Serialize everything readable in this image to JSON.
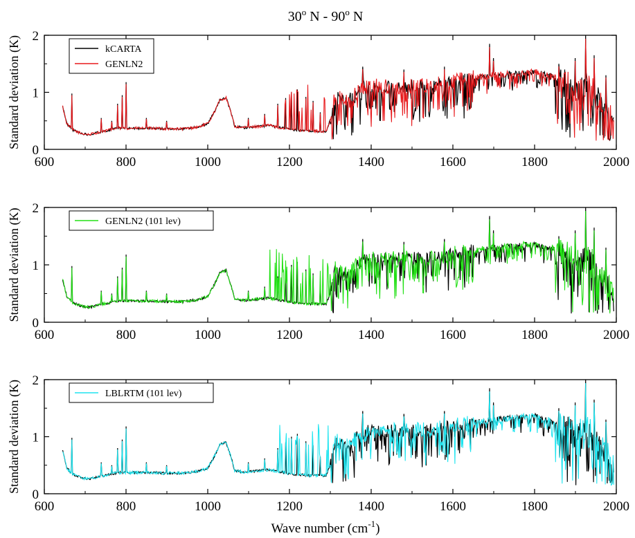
{
  "title": "30",
  "title_parts": {
    "a": "30",
    "a_sup": "o",
    "b": " N - 90",
    "b_sup": "o",
    "c": " N"
  },
  "xlabel": {
    "main": "Wave number (cm",
    "sup": "-1",
    "close": ")"
  },
  "chart_data": [
    {
      "type": "line",
      "ylabel": "Standard deviation (K)",
      "xlim": [
        600,
        2000
      ],
      "ylim": [
        0,
        2
      ],
      "xticks": [
        600,
        800,
        1000,
        1200,
        1400,
        1600,
        1800,
        2000
      ],
      "yticks": [
        0,
        1,
        2
      ],
      "legend_position": "top-left",
      "series": [
        {
          "name": "kCARTA",
          "color": "#000000"
        },
        {
          "name": "GENLN2",
          "color": "#e8191c"
        }
      ]
    },
    {
      "type": "line",
      "ylabel": "Standard deviation (K)",
      "xlim": [
        600,
        2000
      ],
      "ylim": [
        0,
        2
      ],
      "xticks": [
        600,
        800,
        1000,
        1200,
        1400,
        1600,
        1800,
        2000
      ],
      "yticks": [
        0,
        1,
        2
      ],
      "legend_position": "top-left",
      "series": [
        {
          "name": "",
          "color": "#000000"
        },
        {
          "name": "GENLN2 (101 lev)",
          "color": "#22e015"
        }
      ]
    },
    {
      "type": "line",
      "ylabel": "Standard deviation (K)",
      "xlim": [
        600,
        2000
      ],
      "ylim": [
        0,
        2
      ],
      "xticks": [
        600,
        800,
        1000,
        1200,
        1400,
        1600,
        1800,
        2000
      ],
      "yticks": [
        0,
        1,
        2
      ],
      "legend_position": "top-left",
      "series": [
        {
          "name": "",
          "color": "#000000"
        },
        {
          "name": "LBLRTM (101 lev)",
          "color": "#1ee4ef"
        }
      ]
    }
  ],
  "baseline_profile": [
    [
      645,
      0.75
    ],
    [
      655,
      0.45
    ],
    [
      670,
      0.34
    ],
    [
      690,
      0.28
    ],
    [
      710,
      0.26
    ],
    [
      740,
      0.31
    ],
    [
      780,
      0.37
    ],
    [
      820,
      0.37
    ],
    [
      860,
      0.37
    ],
    [
      900,
      0.36
    ],
    [
      940,
      0.36
    ],
    [
      975,
      0.39
    ],
    [
      1000,
      0.45
    ],
    [
      1018,
      0.68
    ],
    [
      1030,
      0.87
    ],
    [
      1045,
      0.9
    ],
    [
      1058,
      0.62
    ],
    [
      1066,
      0.4
    ],
    [
      1090,
      0.38
    ],
    [
      1120,
      0.4
    ],
    [
      1150,
      0.42
    ],
    [
      1200,
      0.35
    ],
    [
      1250,
      0.32
    ],
    [
      1290,
      0.32
    ],
    [
      1302,
      0.55
    ],
    [
      1312,
      0.95
    ],
    [
      1340,
      0.82
    ],
    [
      1380,
      1.1
    ],
    [
      1450,
      1.1
    ],
    [
      1550,
      1.12
    ],
    [
      1650,
      1.25
    ],
    [
      1700,
      1.3
    ],
    [
      1750,
      1.33
    ],
    [
      1800,
      1.36
    ],
    [
      1830,
      1.3
    ],
    [
      1870,
      1.25
    ],
    [
      1900,
      1.05
    ],
    [
      1930,
      1.15
    ],
    [
      1960,
      0.9
    ],
    [
      1985,
      0.6
    ],
    [
      1995,
      0.5
    ]
  ],
  "spikes": [
    [
      668,
      0.98
    ],
    [
      740,
      0.55
    ],
    [
      765,
      0.5
    ],
    [
      780,
      0.8
    ],
    [
      790,
      0.95
    ],
    [
      800,
      1.18
    ],
    [
      850,
      0.55
    ],
    [
      900,
      0.5
    ],
    [
      1100,
      0.55
    ],
    [
      1140,
      0.62
    ],
    [
      1172,
      0.8
    ],
    [
      1190,
      0.9
    ],
    [
      1205,
      1.0
    ],
    [
      1220,
      1.05
    ],
    [
      1240,
      0.92
    ],
    [
      1258,
      0.85
    ],
    [
      1275,
      0.65
    ],
    [
      1380,
      1.45
    ],
    [
      1480,
      1.4
    ],
    [
      1580,
      1.45
    ],
    [
      1690,
      1.85
    ],
    [
      1700,
      1.6
    ],
    [
      1860,
      1.5
    ],
    [
      1900,
      1.6
    ],
    [
      1925,
      2.0
    ],
    [
      1945,
      1.65
    ],
    [
      1975,
      1.3
    ]
  ]
}
